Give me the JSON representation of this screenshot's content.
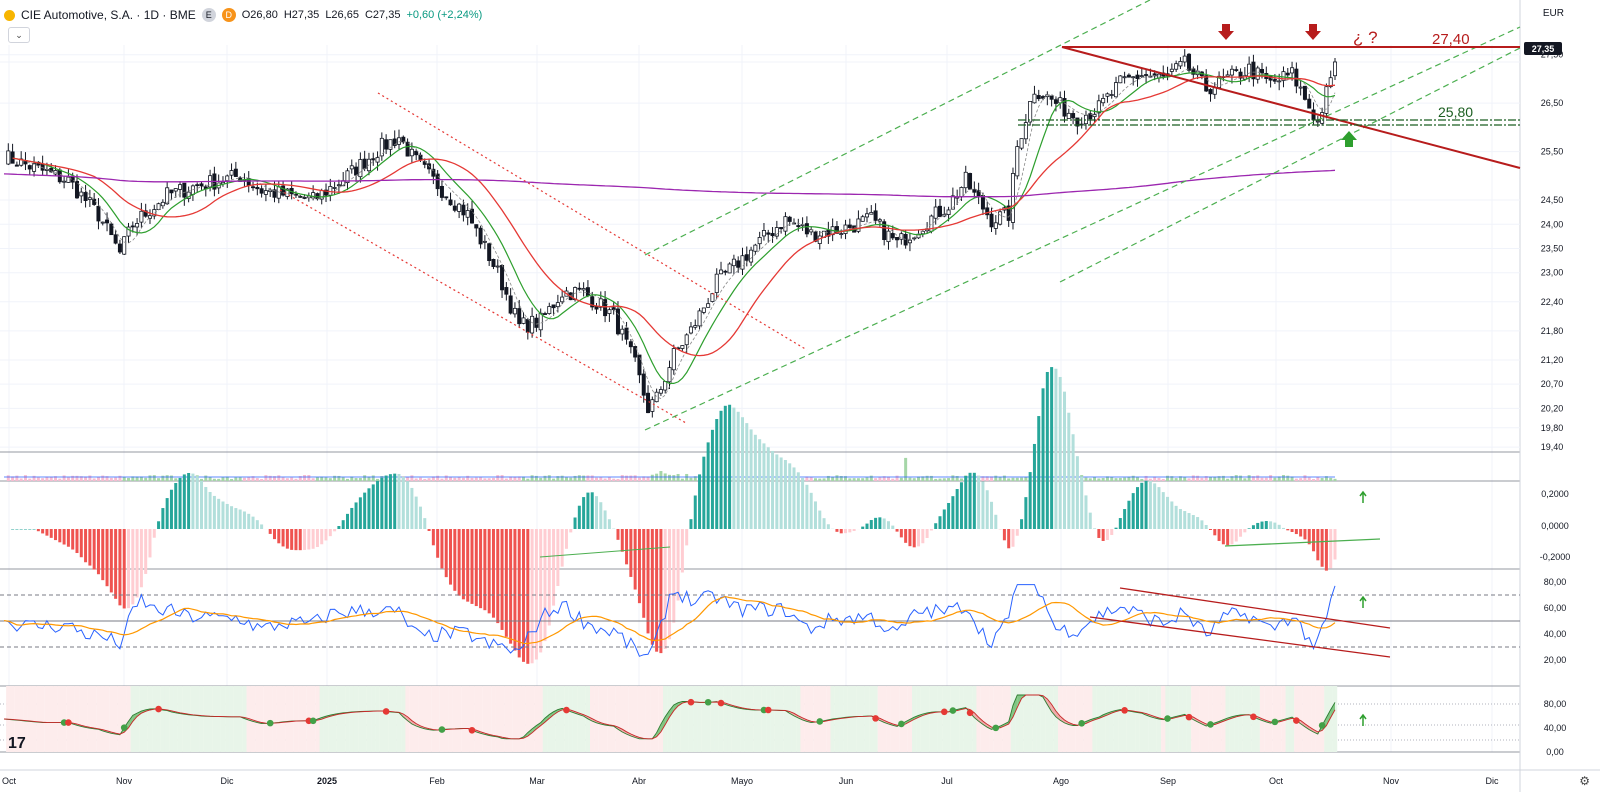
{
  "header": {
    "symbol": "CIE Automotive, S.A. · 1D · BME",
    "badge1": "E",
    "badge2": "D",
    "open": "O26,80",
    "high": "H27,35",
    "low": "L26,65",
    "close": "C27,35",
    "change": "+0,60 (+2,24%)"
  },
  "currency": "EUR",
  "last_price_tag": "27,35",
  "annotations": {
    "resistance": "27,40",
    "support": "25,80",
    "question": "¿ ?"
  },
  "colors": {
    "up": "#ffffff",
    "down": "#131722",
    "ma_green": "#2e9f2e",
    "ma_red": "#e53935",
    "ma_purple": "#9c27b0",
    "dash": "#4caf50",
    "resist": "#b71c1c",
    "support": "#1b5e20",
    "osc_pos_dark": "#26a69a",
    "osc_pos_light": "#b2dfdb",
    "osc_neg_dark": "#ef5350",
    "osc_neg_light": "#ffcdd2",
    "rsi": "#2962ff",
    "rsi_sig": "#ff9800"
  },
  "chart_data": [
    {
      "type": "candlestick",
      "x_ticks": [
        "Oct",
        "Nov",
        "Dic",
        "2025",
        "Feb",
        "Mar",
        "Abr",
        "Mayo",
        "Jun",
        "Jul",
        "Ago",
        "Sep",
        "Oct",
        "Nov",
        "Dic"
      ],
      "y_ticks": [
        "27,50",
        "27,35",
        "26,50",
        "25,50",
        "24,50",
        "24,00",
        "23,50",
        "23,00",
        "22,40",
        "21,80",
        "21,20",
        "20,70",
        "20,20",
        "19,80",
        "19,40"
      ],
      "close_keypoints": [
        [
          0,
          25.4
        ],
        [
          15,
          24.9
        ],
        [
          22,
          24.2
        ],
        [
          27,
          23.4
        ],
        [
          30,
          24.0
        ],
        [
          38,
          24.6
        ],
        [
          45,
          24.8
        ],
        [
          55,
          25.0
        ],
        [
          60,
          24.7
        ],
        [
          72,
          24.5
        ],
        [
          80,
          25.0
        ],
        [
          88,
          25.6
        ],
        [
          92,
          25.8
        ],
        [
          95,
          25.4
        ],
        [
          100,
          24.9
        ],
        [
          108,
          24.2
        ],
        [
          115,
          23.0
        ],
        [
          120,
          21.9
        ],
        [
          125,
          22.0
        ],
        [
          130,
          22.6
        ],
        [
          135,
          22.6
        ],
        [
          142,
          22.1
        ],
        [
          147,
          21.1
        ],
        [
          150,
          20.2
        ],
        [
          152,
          20.4
        ],
        [
          156,
          21.3
        ],
        [
          160,
          21.8
        ],
        [
          166,
          22.8
        ],
        [
          172,
          23.3
        ],
        [
          178,
          23.8
        ],
        [
          182,
          24.1
        ],
        [
          188,
          23.8
        ],
        [
          195,
          23.9
        ],
        [
          202,
          24.1
        ],
        [
          208,
          23.6
        ],
        [
          214,
          24.0
        ],
        [
          220,
          24.4
        ],
        [
          224,
          24.9
        ],
        [
          226,
          24.6
        ],
        [
          230,
          24.1
        ],
        [
          234,
          24.2
        ],
        [
          236,
          25.6
        ],
        [
          240,
          26.8
        ],
        [
          245,
          26.5
        ],
        [
          250,
          26.2
        ],
        [
          255,
          26.4
        ],
        [
          260,
          26.9
        ],
        [
          265,
          27.1
        ],
        [
          270,
          27.0
        ],
        [
          275,
          27.3
        ],
        [
          280,
          26.8
        ],
        [
          285,
          27.0
        ],
        [
          290,
          27.2
        ],
        [
          295,
          26.9
        ],
        [
          300,
          27.1
        ],
        [
          303,
          26.6
        ],
        [
          306,
          26.1
        ],
        [
          308,
          26.7
        ],
        [
          310,
          27.35
        ]
      ],
      "price_range": [
        19.3,
        27.7
      ]
    },
    {
      "type": "bar",
      "name": "volume",
      "spike_day": 210
    },
    {
      "type": "bar",
      "name": "oscillator",
      "y_ticks": [
        "0,2000",
        "0,0000",
        "-0,2000"
      ]
    },
    {
      "type": "line",
      "name": "rsi",
      "y_ticks": [
        "80,00",
        "60,00",
        "40,00",
        "20,00"
      ]
    },
    {
      "type": "area",
      "name": "stoch",
      "y_ticks": [
        "80,00",
        "40,00",
        "0,00"
      ]
    }
  ]
}
